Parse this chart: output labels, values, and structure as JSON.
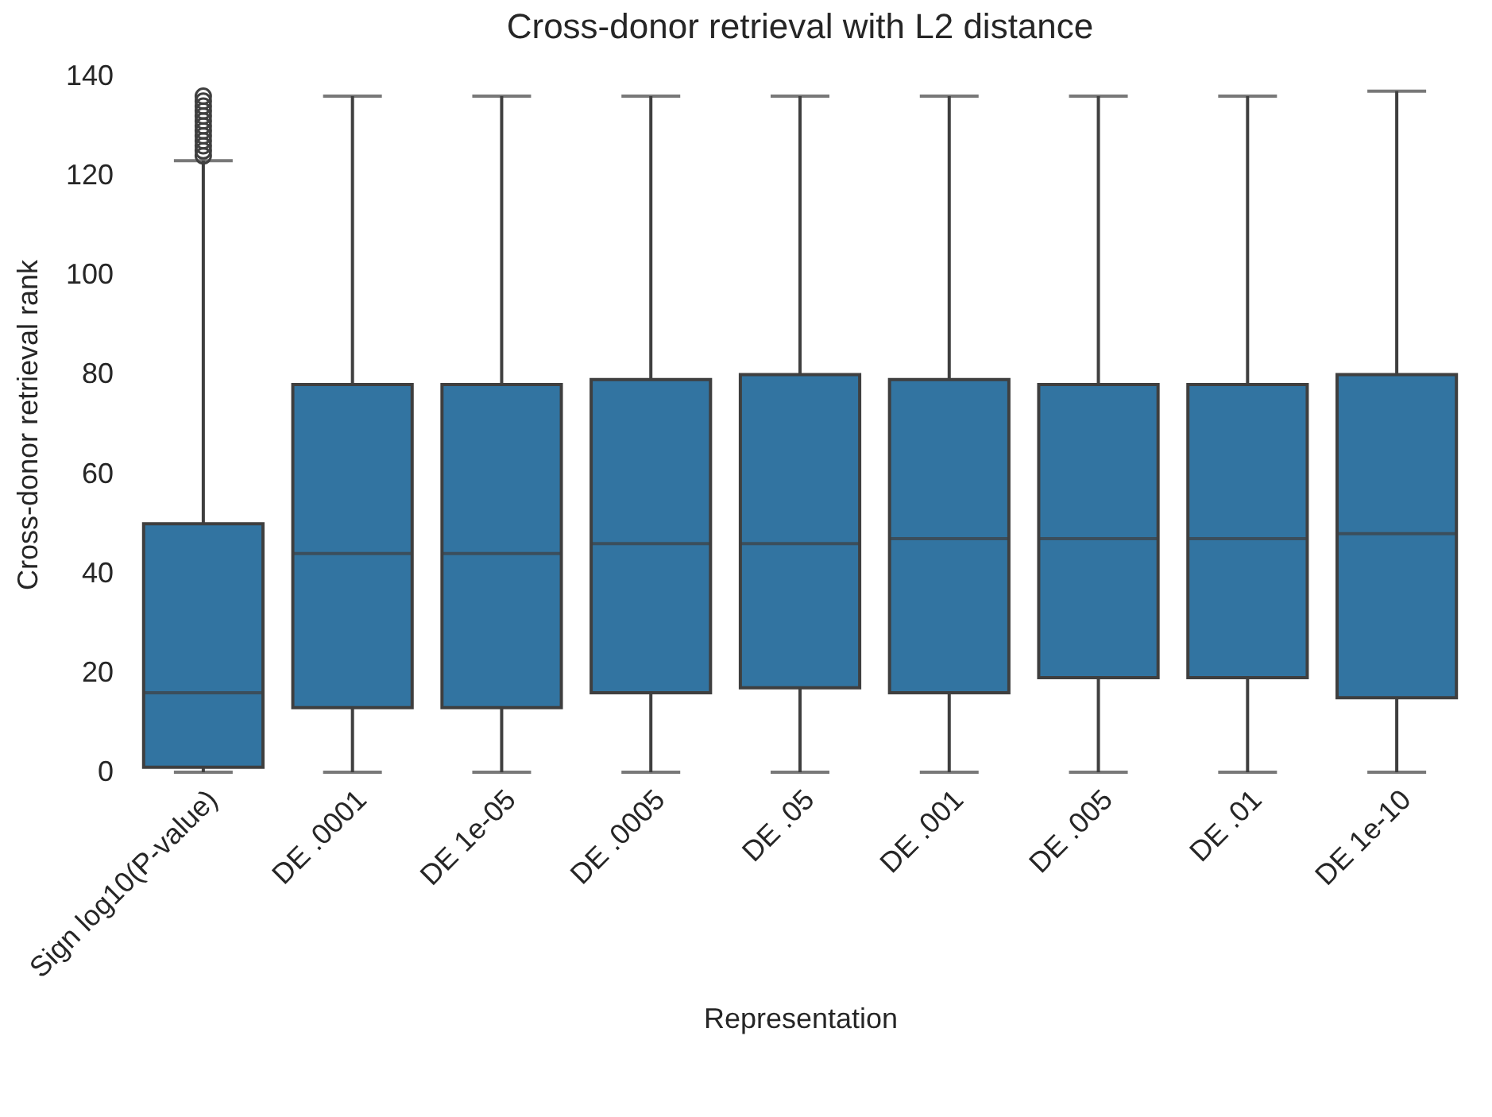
{
  "chart_data": {
    "type": "box",
    "title": "Cross-donor retrieval with L2 distance",
    "xlabel": "Representation",
    "ylabel": "Cross-donor retrieval rank",
    "categories": [
      "Sign log10(P-value)",
      "DE .0001",
      "DE 1e-05",
      "DE .0005",
      "DE .05",
      "DE .001",
      "DE .005",
      "DE .01",
      "DE 1e-10"
    ],
    "color": "#3274a1",
    "boxes": [
      {
        "low": 0,
        "q1": 1,
        "median": 16,
        "q3": 50,
        "high": 123,
        "outliers": [
          124,
          125,
          126,
          127,
          128,
          129,
          130,
          131,
          132,
          133,
          134,
          135,
          136
        ]
      },
      {
        "low": 0,
        "q1": 13,
        "median": 44,
        "q3": 78,
        "high": 136
      },
      {
        "low": 0,
        "q1": 13,
        "median": 44,
        "q3": 78,
        "high": 136
      },
      {
        "low": 0,
        "q1": 16,
        "median": 46,
        "q3": 79,
        "high": 136
      },
      {
        "low": 0,
        "q1": 17,
        "median": 46,
        "q3": 80,
        "high": 136
      },
      {
        "low": 0,
        "q1": 16,
        "median": 47,
        "q3": 79,
        "high": 136
      },
      {
        "low": 0,
        "q1": 19,
        "median": 47,
        "q3": 78,
        "high": 136
      },
      {
        "low": 0,
        "q1": 19,
        "median": 47,
        "q3": 78,
        "high": 136
      },
      {
        "low": 0,
        "q1": 15,
        "median": 48,
        "q3": 80,
        "high": 137
      }
    ],
    "ylim": [
      0,
      140
    ],
    "yticks": [
      0,
      20,
      40,
      60,
      80,
      100,
      120,
      140
    ]
  }
}
